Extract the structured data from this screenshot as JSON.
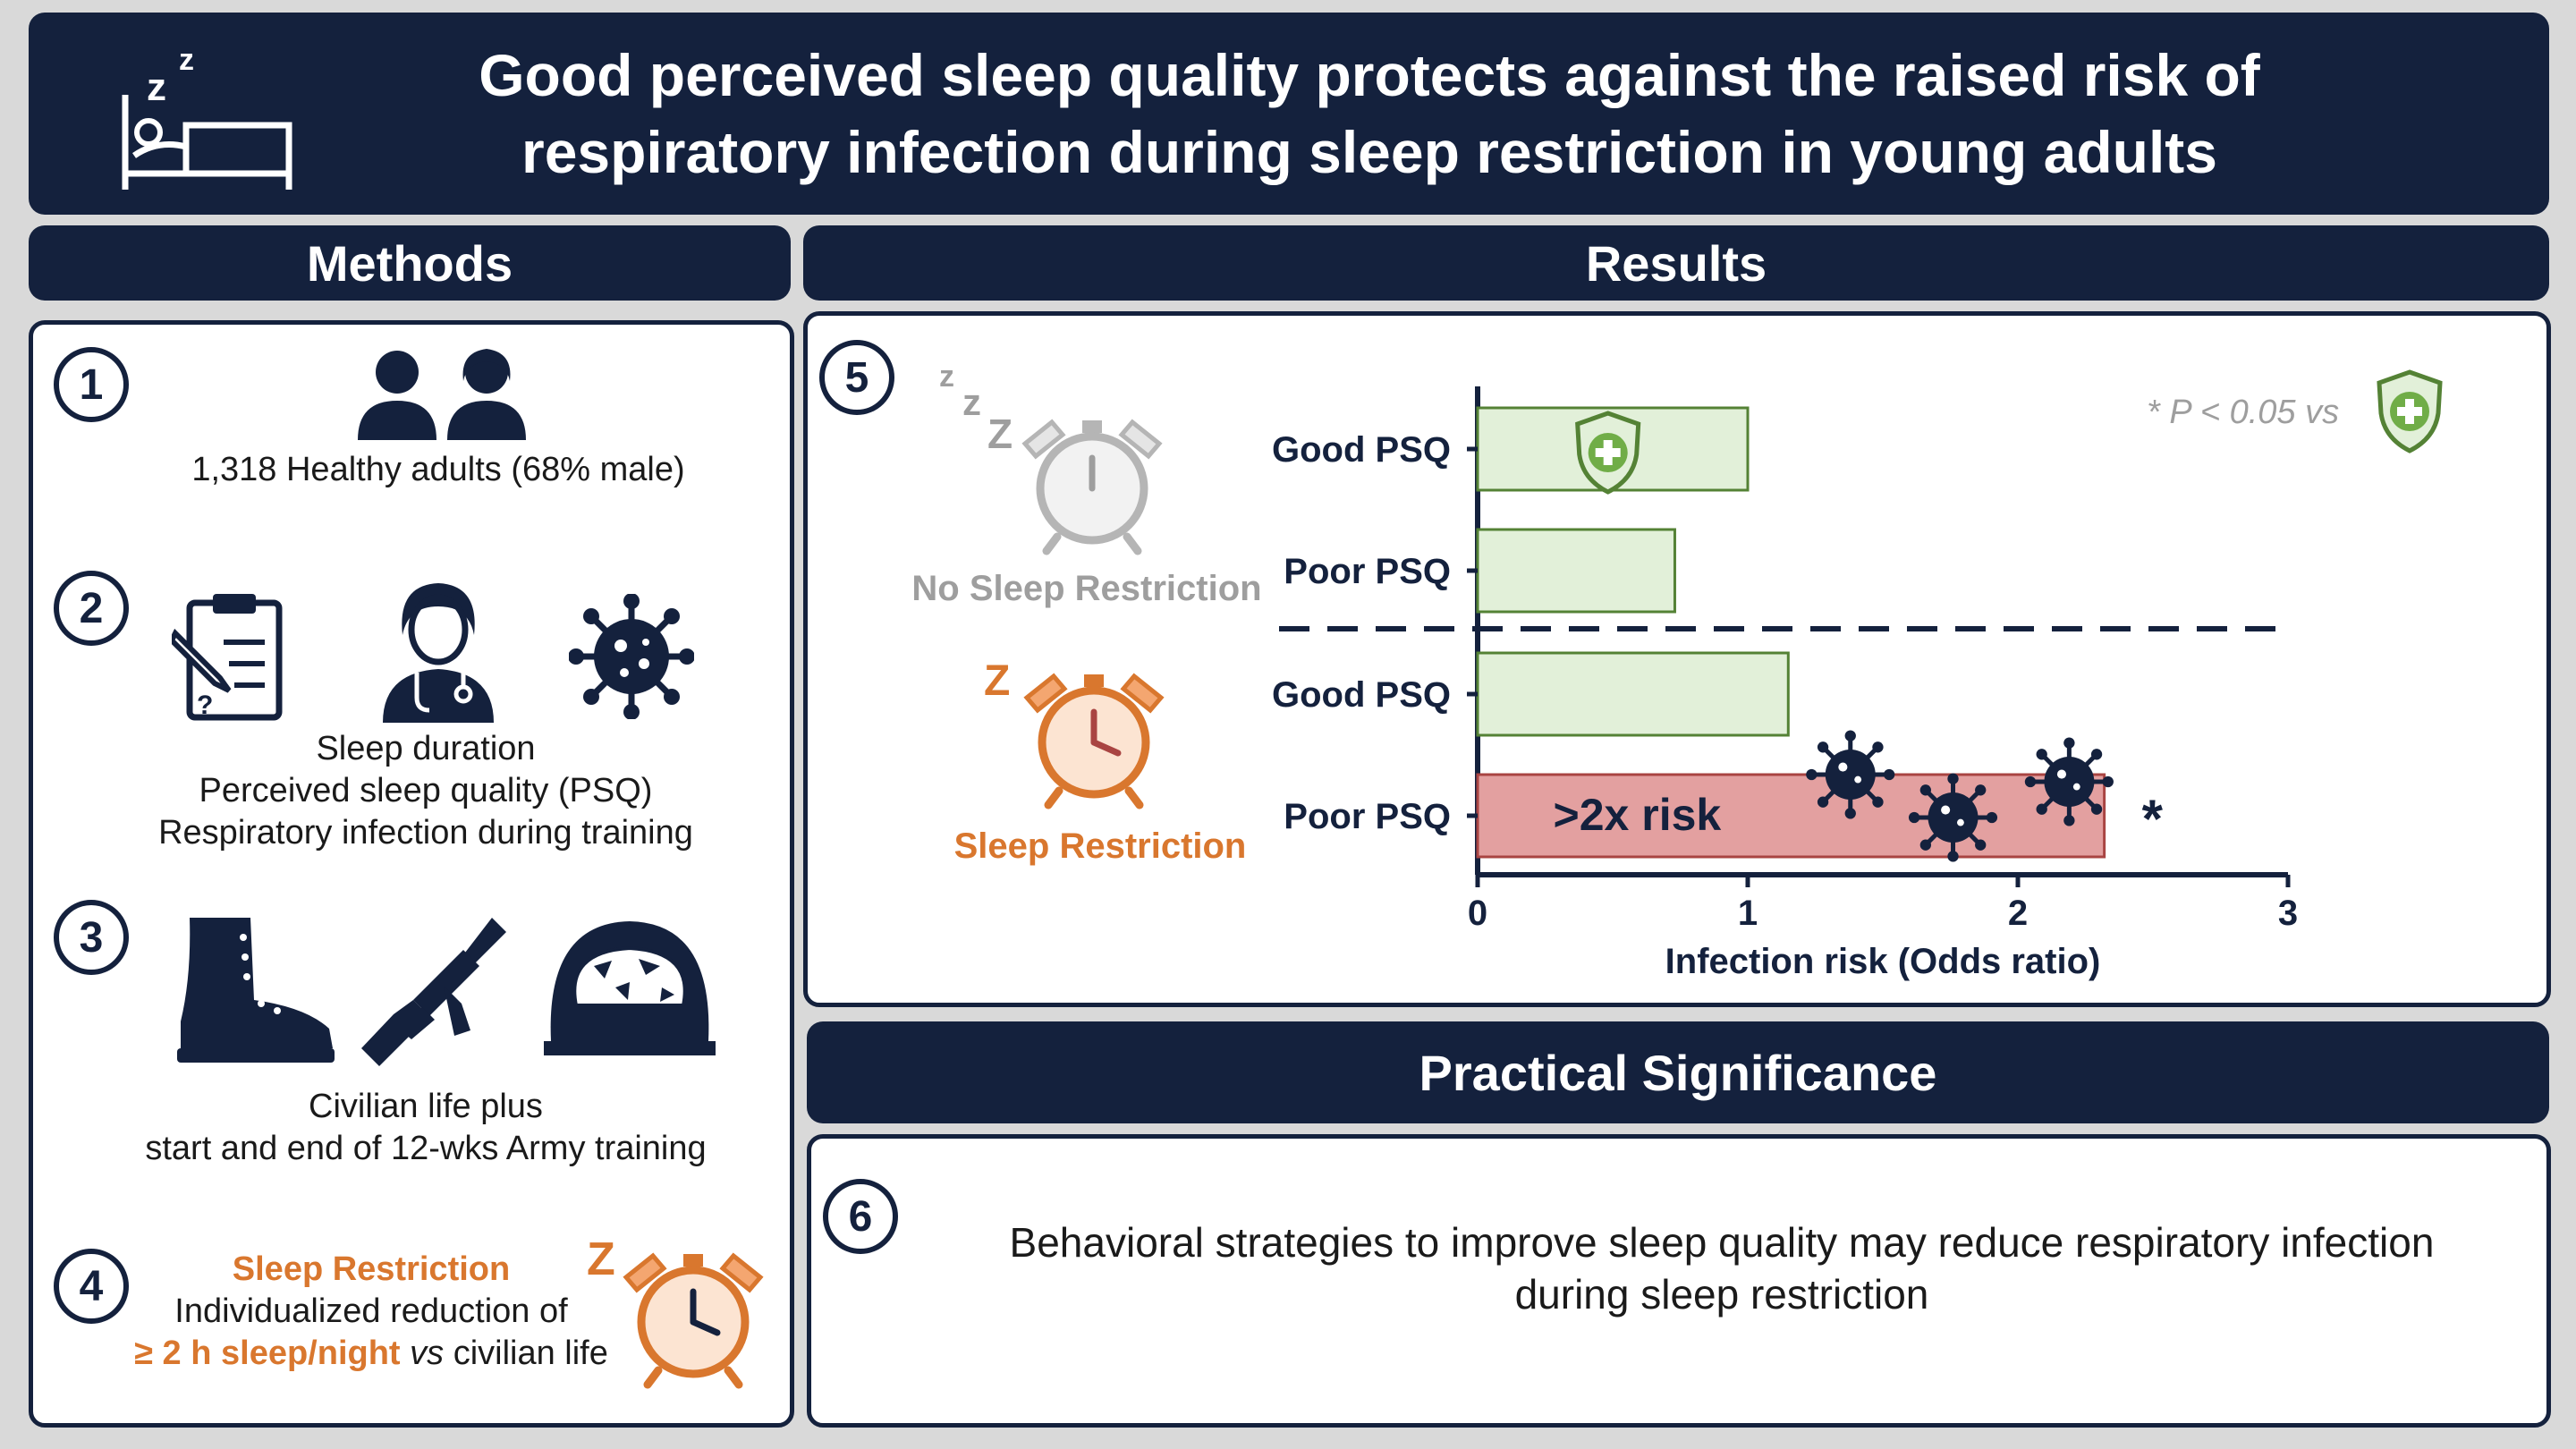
{
  "title": {
    "line1": "Good perceived sleep quality protects against the raised risk of",
    "line2": "respiratory infection during sleep restriction in young adults"
  },
  "sections": {
    "methods": "Methods",
    "results": "Results",
    "practical": "Practical Significance"
  },
  "methods": {
    "step1": {
      "num": "1",
      "text": "1,318 Healthy adults (68% male)"
    },
    "step2": {
      "num": "2",
      "lines": [
        "Sleep duration",
        "Perceived sleep quality (PSQ)",
        "Respiratory infection during training"
      ]
    },
    "step3": {
      "num": "3",
      "lines": [
        "Civilian life plus",
        "start and end of 12-wks Army training"
      ]
    },
    "step4": {
      "num": "4",
      "heading": "Sleep Restriction",
      "line2": "Individualized reduction of",
      "line3_highlight": "≥ 2 h sleep/night",
      "line3_vs": "vs",
      "line3_rest": " civilian life"
    }
  },
  "results": {
    "num": "5",
    "no_restriction_label": "No Sleep Restriction",
    "restriction_label": "Sleep Restriction",
    "zzz_small": "z",
    "zzz_big": "Z",
    "z_orange": "Z",
    "significance_note": {
      "star": "*",
      "p_text": "P < 0.05",
      "vs": "vs"
    }
  },
  "chart_data": {
    "type": "bar",
    "orientation": "horizontal",
    "categories": [
      "Good PSQ",
      "Poor PSQ",
      "Good PSQ",
      "Poor PSQ"
    ],
    "groups": [
      "No Sleep Restriction",
      "No Sleep Restriction",
      "Sleep Restriction",
      "Sleep Restriction"
    ],
    "values": [
      1.0,
      0.73,
      1.15,
      2.32
    ],
    "bar_colors": [
      "#e2f0d9",
      "#e2f0d9",
      "#e2f0d9",
      "#e3a0a0"
    ],
    "bar_edge_colors": [
      "#548235",
      "#548235",
      "#548235",
      "#a94442"
    ],
    "xlabel": "Infection risk (Odds ratio)",
    "ylabel": "",
    "xlim": [
      0,
      3
    ],
    "xticks": [
      "0",
      "1",
      "2",
      "3"
    ],
    "annotations": {
      "bar_text": ">2x risk",
      "significance_star": "*"
    },
    "grid": false
  },
  "practical": {
    "num": "6",
    "line1": "Behavioral strategies to improve sleep quality may reduce respiratory infection",
    "line2": "during sleep restriction"
  },
  "colors": {
    "navy": "#14213d",
    "orange": "#d9772e",
    "green": "#548235",
    "light_green": "#e2f0d9",
    "red_bar": "#e3a0a0",
    "grey": "#9e9e9e"
  },
  "icons": [
    "bed-icon",
    "people-icon",
    "clipboard-icon",
    "doctor-icon",
    "virus-icon",
    "boot-icon",
    "rifle-icon",
    "helmet-icon",
    "alarm-clock-icon",
    "shield-plus-icon"
  ]
}
